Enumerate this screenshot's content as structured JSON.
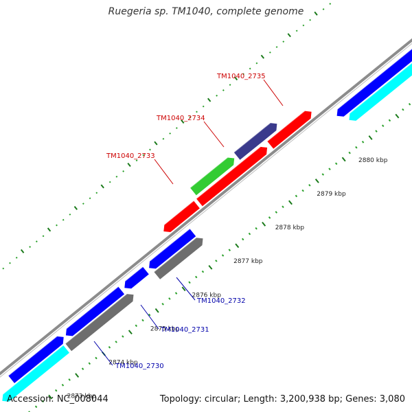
{
  "title": "Ruegeria sp. TM1040, complete genome",
  "footer": {
    "accession": "Accession: NC_008044",
    "summary": "Topology: circular; Length: 3,200,938 bp; Genes: 3,080"
  },
  "colors": {
    "backbone": "#8c8c8c",
    "tick_dark": "#1a7a1a",
    "tick_light": "#2aa02a",
    "label_red": "#cc0000",
    "label_blue": "#0000aa",
    "blue": "#0000ff",
    "cyan": "#00ffff",
    "gray": "#6e6e6e",
    "red": "#ff0000",
    "green": "#33cc33",
    "slate": "#3a3a8c"
  },
  "scale_ticks": [
    {
      "label": "2873 kbp"
    },
    {
      "label": "2874 kbp"
    },
    {
      "label": "2875 kbp"
    },
    {
      "label": "2876 kbp"
    },
    {
      "label": "2877 kbp"
    },
    {
      "label": "2878 kbp"
    },
    {
      "label": "2879 kbp"
    },
    {
      "label": "2880 kbp"
    }
  ],
  "gene_labels": [
    {
      "text": "TM1040_2735",
      "color": "label_red"
    },
    {
      "text": "TM1040_2734",
      "color": "label_red"
    },
    {
      "text": "TM1040_2733",
      "color": "label_red"
    },
    {
      "text": "TM1040_2732",
      "color": "label_blue"
    },
    {
      "text": "TM1040_2731",
      "color": "label_blue"
    },
    {
      "text": "TM1040_2730",
      "color": "label_blue"
    }
  ]
}
